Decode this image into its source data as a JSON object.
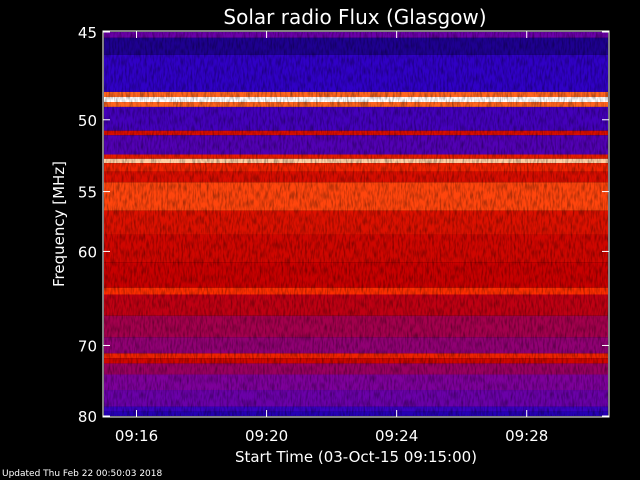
{
  "chart_data": {
    "type": "heatmap",
    "title": "Solar radio Flux (Glasgow)",
    "xlabel": "Start Time (03-Oct-15 09:15:00)",
    "ylabel": "Frequency [MHz]",
    "x_range": [
      "09:15:00",
      "09:30:30"
    ],
    "y_range": [
      45,
      80
    ],
    "x_ticks": [
      "09:16",
      "09:20",
      "09:24",
      "09:28"
    ],
    "y_ticks": [
      45,
      50,
      55,
      60,
      70,
      80
    ],
    "y_scale": "reciprocal",
    "colormap": [
      "#000000",
      "#2a00c8",
      "#7a00a0",
      "#c80000",
      "#ff3000",
      "#ff9a40",
      "#ffffff"
    ],
    "bands": [
      {
        "f": [
          45.0,
          45.3
        ],
        "level": 0.3
      },
      {
        "f": [
          45.3,
          46.2
        ],
        "level": 0.12
      },
      {
        "f": [
          46.2,
          48.3
        ],
        "level": 0.18
      },
      {
        "f": [
          48.3,
          48.6
        ],
        "level": 0.75
      },
      {
        "f": [
          48.6,
          48.9
        ],
        "level": 1.0
      },
      {
        "f": [
          48.9,
          49.2
        ],
        "level": 0.75
      },
      {
        "f": [
          49.2,
          50.7
        ],
        "level": 0.22
      },
      {
        "f": [
          50.7,
          51.0
        ],
        "level": 0.55
      },
      {
        "f": [
          51.0,
          52.3
        ],
        "level": 0.25
      },
      {
        "f": [
          52.3,
          52.6
        ],
        "level": 0.6
      },
      {
        "f": [
          52.6,
          52.9
        ],
        "level": 0.92
      },
      {
        "f": [
          52.9,
          53.5
        ],
        "level": 0.62
      },
      {
        "f": [
          53.5,
          54.3
        ],
        "level": 0.55
      },
      {
        "f": [
          54.3,
          56.5
        ],
        "level": 0.7
      },
      {
        "f": [
          56.5,
          58.5
        ],
        "level": 0.56
      },
      {
        "f": [
          58.5,
          61.0
        ],
        "level": 0.52
      },
      {
        "f": [
          61.0,
          63.5
        ],
        "level": 0.5
      },
      {
        "f": [
          63.5,
          64.2
        ],
        "level": 0.66
      },
      {
        "f": [
          64.2,
          66.5
        ],
        "level": 0.48
      },
      {
        "f": [
          66.5,
          69.0
        ],
        "level": 0.42
      },
      {
        "f": [
          69.0,
          71.0
        ],
        "level": 0.38
      },
      {
        "f": [
          71.0,
          71.6
        ],
        "level": 0.62
      },
      {
        "f": [
          71.6,
          72.3
        ],
        "level": 0.52
      },
      {
        "f": [
          72.3,
          73.8
        ],
        "level": 0.4
      },
      {
        "f": [
          73.8,
          76.0
        ],
        "level": 0.34
      },
      {
        "f": [
          76.0,
          78.5
        ],
        "level": 0.3
      },
      {
        "f": [
          78.5,
          79.3
        ],
        "level": 0.2
      },
      {
        "f": [
          79.3,
          80.0
        ],
        "level": 0.15
      }
    ]
  },
  "footer": {
    "updated": "Updated Thu Feb 22 00:50:03 2018"
  }
}
